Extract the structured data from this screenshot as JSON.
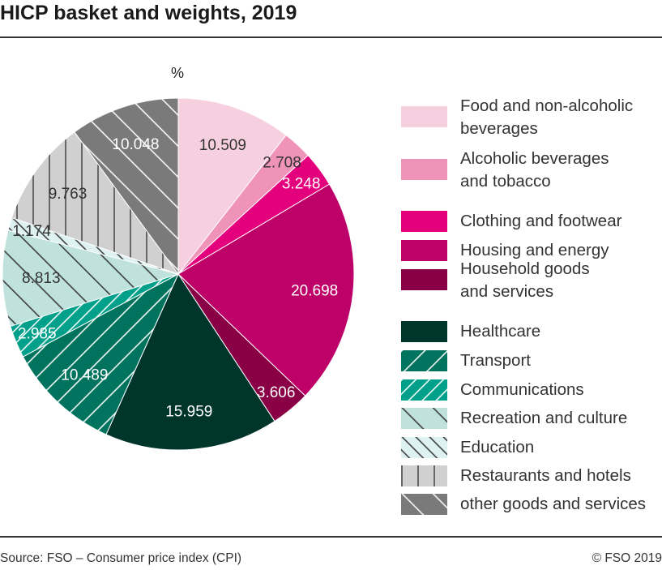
{
  "title": "HICP basket and weights, 2019",
  "footer": {
    "source": "Source: FSO – Consumer price index (CPI)",
    "copyright": "© FSO 2019"
  },
  "chart_data": {
    "type": "pie",
    "unit_label": "%",
    "legend_position": "right",
    "slices": [
      {
        "name": "Food and non-alcoholic beverages",
        "value": 10.509,
        "label": "10.509",
        "color": "#f7d0df",
        "pattern": "none"
      },
      {
        "name": "Alcoholic beverages and tobacco",
        "value": 2.708,
        "label": "2.708",
        "color": "#ef94b8",
        "pattern": "none"
      },
      {
        "name": "Clothing and footwear",
        "value": 3.248,
        "label": "3.248",
        "color": "#e4007d",
        "pattern": "none"
      },
      {
        "name": "Housing and energy",
        "value": 20.698,
        "label": "20.698",
        "color": "#be0069",
        "pattern": "none"
      },
      {
        "name": "Household goods and services",
        "value": 3.606,
        "label": "3.606",
        "color": "#8a0046",
        "pattern": "none"
      },
      {
        "name": "Healthcare",
        "value": 15.959,
        "label": "15.959",
        "color": "#00352c",
        "pattern": "none"
      },
      {
        "name": "Transport",
        "value": 10.489,
        "label": "10.489",
        "color": "#00735f",
        "pattern": "backslash-white"
      },
      {
        "name": "Communications",
        "value": 2.985,
        "label": "2.985",
        "color": "#00a08a",
        "pattern": "backslash-white-dense"
      },
      {
        "name": "Recreation and culture",
        "value": 8.813,
        "label": "8.813",
        "color": "#bfe3dc",
        "pattern": "slash-dark"
      },
      {
        "name": "Education",
        "value": 1.174,
        "label": "1.174",
        "color": "#dff2f2",
        "pattern": "slash-dark-dense"
      },
      {
        "name": "Restaurants and hotels",
        "value": 9.763,
        "label": "9.763",
        "color": "#d0d0d0",
        "pattern": "vertical-dark"
      },
      {
        "name": "other goods and services",
        "value": 10.048,
        "label": "10.048",
        "color": "#7a7a7a",
        "pattern": "slash-white"
      }
    ]
  },
  "legend": [
    {
      "line1": "Food and non-alcoholic",
      "line2": "beverages"
    },
    {
      "line1": "Alcoholic beverages",
      "line2": "and tobacco"
    },
    {
      "line1": "Clothing and footwear"
    },
    {
      "line1": "Housing and energy"
    },
    {
      "line1": "Household goods",
      "line2": "and services"
    },
    {
      "line1": "Healthcare"
    },
    {
      "line1": "Transport"
    },
    {
      "line1": "Communications"
    },
    {
      "line1": "Recreation and culture"
    },
    {
      "line1": "Education"
    },
    {
      "line1": "Restaurants and hotels"
    },
    {
      "line1": "other goods and services"
    }
  ]
}
